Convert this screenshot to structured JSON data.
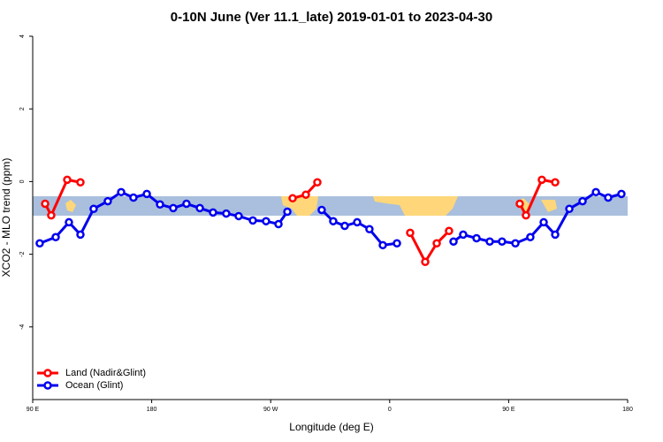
{
  "chart_data": {
    "type": "line",
    "title": "0-10N June (Ver 11.1_late)   2019-01-01 to 2023-04-30",
    "xlabel": "Longitude (deg E)",
    "ylabel": "XCO2 - MLO trend (ppm)",
    "xlim": [
      90,
      540
    ],
    "ylim": [
      -6,
      4
    ],
    "xticks": [
      {
        "value": 90,
        "label": "90 E"
      },
      {
        "value": 180,
        "label": "180"
      },
      {
        "value": 270,
        "label": "90 W"
      },
      {
        "value": 360,
        "label": "0"
      },
      {
        "value": 450,
        "label": "90 E"
      },
      {
        "value": 540,
        "label": "180"
      }
    ],
    "yticks": [
      -4,
      -2,
      0,
      2,
      4
    ],
    "legend": "bottom-left",
    "series": [
      {
        "name": "Land (Nadir&Glint)",
        "color": "#ff0000",
        "x": [
          99.4,
          104.0,
          116.1,
          126.1,
          null,
          286.6,
          296.6,
          305.3,
          null,
          375.5,
          386.9,
          395.6,
          404.9,
          null,
          458.4,
          463.1,
          475.1,
          485.2
        ],
        "values": [
          -0.61,
          -0.93,
          0.05,
          -0.02,
          null,
          -0.46,
          -0.36,
          -0.02,
          null,
          -1.41,
          -2.21,
          -1.7,
          -1.36,
          null,
          -0.61,
          -0.93,
          0.05,
          -0.02
        ]
      },
      {
        "name": "Ocean (Glint)",
        "color": "#0000ee",
        "x": [
          95.3,
          107.4,
          117.4,
          126.1,
          136.1,
          146.8,
          156.9,
          166.2,
          176.3,
          186.3,
          196.3,
          206.3,
          216.4,
          226.4,
          236.4,
          245.8,
          256.5,
          266.5,
          275.9,
          282.6,
          null,
          308.6,
          317.3,
          326.0,
          335.4,
          344.7,
          354.8,
          365.5,
          null,
          408.3,
          415.6,
          425.7,
          435.7,
          445.0,
          455.1,
          466.4,
          476.5,
          485.2,
          495.9,
          505.9,
          516.0,
          525.3,
          535.3
        ],
        "values": [
          -1.7,
          -1.53,
          -1.12,
          -1.46,
          -0.75,
          -0.54,
          -0.29,
          -0.44,
          -0.34,
          -0.63,
          -0.73,
          -0.61,
          -0.73,
          -0.85,
          -0.88,
          -0.95,
          -1.07,
          -1.09,
          -1.17,
          -0.83,
          null,
          -0.78,
          -1.09,
          -1.22,
          -1.12,
          -1.31,
          -1.75,
          -1.7,
          null,
          -1.65,
          -1.46,
          -1.56,
          -1.65,
          -1.65,
          -1.7,
          -1.53,
          -1.12,
          -1.46,
          -0.75,
          -0.54,
          -0.29,
          -0.44,
          -0.34
        ]
      }
    ]
  }
}
